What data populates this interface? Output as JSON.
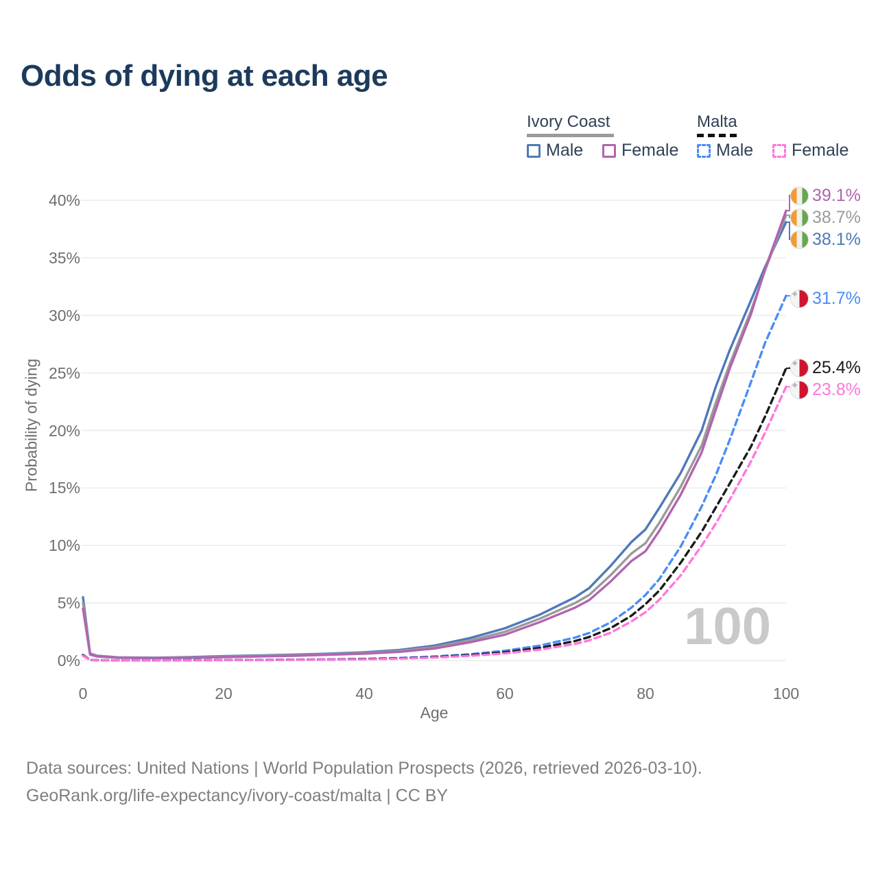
{
  "title": "Odds of dying at each age",
  "legend": {
    "groups": [
      {
        "label": "Ivory Coast",
        "style": "solid",
        "underline_color": "#9a9a9a",
        "items": [
          {
            "label": "Male",
            "color": "#4e79b9"
          },
          {
            "label": "Female",
            "color": "#b164af"
          }
        ]
      },
      {
        "label": "Malta",
        "style": "dashed",
        "underline_color": "#111111",
        "items": [
          {
            "label": "Male",
            "color": "#4a8df5"
          },
          {
            "label": "Female",
            "color": "#ff77dd"
          }
        ]
      }
    ]
  },
  "chart_data": {
    "type": "line",
    "title": "Odds of dying at each age",
    "xlabel": "Age",
    "ylabel": "Probability of dying",
    "xlim": [
      0,
      100
    ],
    "ylim": [
      0,
      40
    ],
    "xticks": [
      0,
      20,
      40,
      60,
      80,
      100
    ],
    "ytick_values": [
      0,
      5,
      10,
      15,
      20,
      25,
      30,
      35,
      40
    ],
    "ytick_suffix": "%",
    "grid": "horizontal",
    "legend_position": "top-right",
    "watermark": "100",
    "x": [
      0,
      1,
      2,
      5,
      10,
      15,
      20,
      25,
      30,
      35,
      40,
      45,
      50,
      55,
      60,
      65,
      70,
      72,
      75,
      78,
      80,
      82,
      85,
      88,
      90,
      92,
      95,
      97,
      100
    ],
    "series": [
      {
        "id": "ic_m",
        "name": "Ivory Coast Male",
        "country": "ivory-coast",
        "sex": "male",
        "color": "#4e79b9",
        "dash": false,
        "end_label": "38.1%",
        "values": [
          5.5,
          0.62,
          0.42,
          0.28,
          0.25,
          0.3,
          0.38,
          0.45,
          0.52,
          0.6,
          0.72,
          0.92,
          1.3,
          1.95,
          2.8,
          4.0,
          5.5,
          6.3,
          8.2,
          10.3,
          11.4,
          13.3,
          16.3,
          20.0,
          23.8,
          27.0,
          31.3,
          34.2,
          38.1
        ]
      },
      {
        "id": "ic_t",
        "name": "Ivory Coast Both sexes",
        "country": "ivory-coast",
        "sex": "both",
        "color": "#9a9a9a",
        "dash": false,
        "end_label": "38.7%",
        "values": [
          5.0,
          0.57,
          0.39,
          0.26,
          0.23,
          0.27,
          0.34,
          0.41,
          0.47,
          0.55,
          0.66,
          0.84,
          1.17,
          1.75,
          2.5,
          3.65,
          5.0,
          5.7,
          7.4,
          9.3,
          10.2,
          12.0,
          15.1,
          18.7,
          22.4,
          25.8,
          30.4,
          33.9,
          38.7
        ]
      },
      {
        "id": "ic_f",
        "name": "Ivory Coast Female",
        "country": "ivory-coast",
        "sex": "female",
        "color": "#b164af",
        "dash": false,
        "end_label": "39.1%",
        "values": [
          4.5,
          0.52,
          0.36,
          0.24,
          0.21,
          0.24,
          0.3,
          0.36,
          0.42,
          0.5,
          0.6,
          0.76,
          1.05,
          1.58,
          2.25,
          3.35,
          4.6,
          5.25,
          6.85,
          8.65,
          9.5,
          11.3,
          14.4,
          18.1,
          21.8,
          25.4,
          30.1,
          34.0,
          39.1
        ]
      },
      {
        "id": "mt_m",
        "name": "Malta Male",
        "country": "malta",
        "sex": "male",
        "color": "#4a8df5",
        "dash": true,
        "end_label": "31.7%",
        "values": [
          0.5,
          0.06,
          0.03,
          0.02,
          0.02,
          0.03,
          0.05,
          0.06,
          0.08,
          0.1,
          0.15,
          0.22,
          0.35,
          0.55,
          0.85,
          1.3,
          2.0,
          2.4,
          3.3,
          4.6,
          5.7,
          7.1,
          9.9,
          13.4,
          16.1,
          19.2,
          24.2,
          27.6,
          31.7
        ]
      },
      {
        "id": "mt_t",
        "name": "Malta Both sexes",
        "country": "malta",
        "sex": "both",
        "color": "#1a1a1a",
        "dash": true,
        "end_label": "25.4%",
        "values": [
          0.46,
          0.05,
          0.03,
          0.02,
          0.02,
          0.03,
          0.04,
          0.05,
          0.07,
          0.09,
          0.13,
          0.19,
          0.3,
          0.47,
          0.72,
          1.1,
          1.7,
          2.05,
          2.8,
          3.9,
          4.9,
          6.1,
          8.5,
          11.2,
          13.3,
          15.4,
          18.6,
          21.2,
          25.4
        ]
      },
      {
        "id": "mt_f",
        "name": "Malta Female",
        "country": "malta",
        "sex": "female",
        "color": "#ff77dd",
        "dash": true,
        "end_label": "23.8%",
        "values": [
          0.42,
          0.05,
          0.02,
          0.02,
          0.02,
          0.02,
          0.03,
          0.04,
          0.06,
          0.08,
          0.11,
          0.16,
          0.26,
          0.41,
          0.62,
          0.95,
          1.45,
          1.75,
          2.4,
          3.4,
          4.2,
          5.3,
          7.4,
          10.0,
          11.9,
          14.0,
          17.3,
          19.8,
          23.8
        ]
      }
    ]
  },
  "footer": {
    "line1": "Data sources: United Nations | World Population Prospects (2026, retrieved 2026-03-10).",
    "line2": "GeoRank.org/life-expectancy/ivory-coast/malta | CC BY"
  },
  "colors": {
    "title": "#1c3a5c",
    "grid": "#ebebeb",
    "tick_text": "#6f6f6f",
    "footer_text": "#7f7f7f",
    "watermark": "#c9c9c9"
  }
}
